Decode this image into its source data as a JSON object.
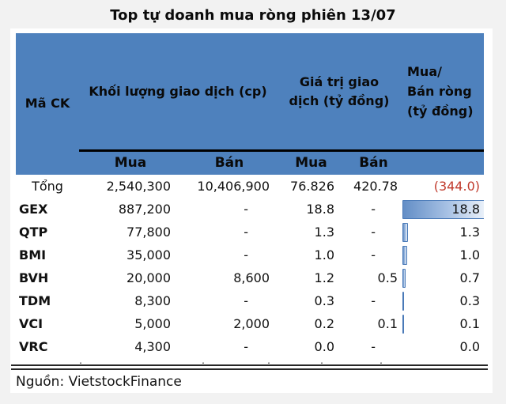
{
  "title": "Top tự doanh mua ròng phiên 13/07",
  "source": "Nguồn: VietstockFinance",
  "colors": {
    "page_bg": "#f2f2f2",
    "panel_bg": "#ffffff",
    "header_bg": "#4e81bd",
    "negative_text": "#c0392b",
    "bar_border": "#4a7ab8",
    "bar_fill_start": "#638ec6",
    "bar_fill_end": "#e9f0f9"
  },
  "table": {
    "col1_header": "Mã CK",
    "group1_header": "Khối lượng giao dịch (cp)",
    "group2_header": "Giá trị giao dịch (tỷ đồng)",
    "net_header_lines": [
      "Mua/",
      "Bán ròng",
      "(tỷ đồng)"
    ],
    "sub_headers": [
      "Mua",
      "Bán",
      "Mua",
      "Bán"
    ],
    "total_row": {
      "label": "Tổng",
      "vol_buy": "2,540,300",
      "vol_sell": "10,406,900",
      "val_buy": "76.826",
      "val_sell": "420.78",
      "net": "(344.0)"
    },
    "rows": [
      {
        "code": "GEX",
        "vol_buy": "887,200",
        "vol_sell": "-",
        "val_buy": "18.8",
        "val_sell": "-",
        "net": "18.8"
      },
      {
        "code": "QTP",
        "vol_buy": "77,800",
        "vol_sell": "-",
        "val_buy": "1.3",
        "val_sell": "-",
        "net": "1.3"
      },
      {
        "code": "BMI",
        "vol_buy": "35,000",
        "vol_sell": "-",
        "val_buy": "1.0",
        "val_sell": "-",
        "net": "1.0"
      },
      {
        "code": "BVH",
        "vol_buy": "20,000",
        "vol_sell": "8,600",
        "val_buy": "1.2",
        "val_sell": "0.5",
        "net": "0.7"
      },
      {
        "code": "TDM",
        "vol_buy": "8,300",
        "vol_sell": "-",
        "val_buy": "0.3",
        "val_sell": "-",
        "net": "0.3"
      },
      {
        "code": "VCI",
        "vol_buy": "5,000",
        "vol_sell": "2,000",
        "val_buy": "0.2",
        "val_sell": "0.1",
        "net": "0.1"
      },
      {
        "code": "VRC",
        "vol_buy": "4,300",
        "vol_sell": "-",
        "val_buy": "0.0",
        "val_sell": "-",
        "net": "0.0"
      }
    ],
    "clipped_row_marks": [
      ",",
      ",",
      ",",
      ",",
      ","
    ]
  },
  "chart_data": {
    "type": "table",
    "title": "Top tự doanh mua ròng phiên 13/07",
    "columns": [
      "Mã CK",
      "Khối lượng giao dịch Mua (cp)",
      "Khối lượng giao dịch Bán (cp)",
      "Giá trị giao dịch Mua (tỷ đồng)",
      "Giá trị giao dịch Bán (tỷ đồng)",
      "Mua/Bán ròng (tỷ đồng)"
    ],
    "rows": [
      [
        "Tổng",
        2540300,
        10406900,
        76.826,
        420.78,
        -344.0
      ],
      [
        "GEX",
        887200,
        null,
        18.8,
        null,
        18.8
      ],
      [
        "QTP",
        77800,
        null,
        1.3,
        null,
        1.3
      ],
      [
        "BMI",
        35000,
        null,
        1.0,
        null,
        1.0
      ],
      [
        "BVH",
        20000,
        8600,
        1.2,
        0.5,
        0.7
      ],
      [
        "TDM",
        8300,
        null,
        0.3,
        null,
        0.3
      ],
      [
        "VCI",
        5000,
        2000,
        0.2,
        0.1,
        0.1
      ],
      [
        "VRC",
        4300,
        null,
        0.0,
        null,
        0.0
      ]
    ],
    "bar_column_index": 5,
    "bar_max": 18.8,
    "source": "Nguồn: VietstockFinance"
  }
}
